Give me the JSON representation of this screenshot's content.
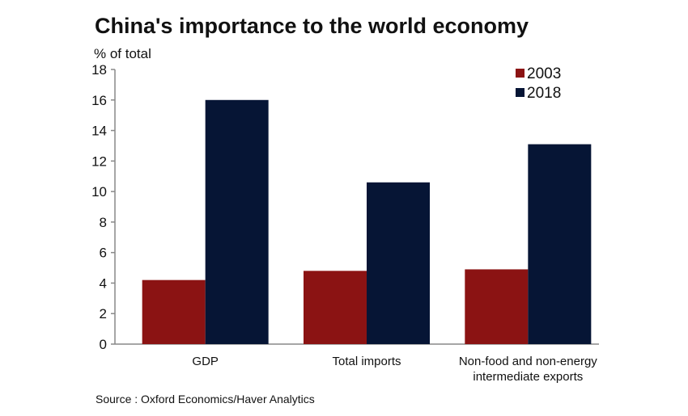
{
  "chart_data": {
    "type": "bar",
    "title": "China's importance to the world economy",
    "ylabel": "% of total",
    "ylim": [
      0,
      18
    ],
    "yticks": [
      0,
      2,
      4,
      6,
      8,
      10,
      12,
      14,
      16,
      18
    ],
    "categories": [
      [
        "GDP"
      ],
      [
        "Total imports"
      ],
      [
        "Non-food and non-energy",
        "intermediate exports"
      ]
    ],
    "series": [
      {
        "name": "2003",
        "color": "#8b1313",
        "values": [
          4.2,
          4.8,
          4.9
        ]
      },
      {
        "name": "2018",
        "color": "#061535",
        "values": [
          16.0,
          10.6,
          13.1
        ]
      }
    ],
    "legend_position": "top-right",
    "grid": false,
    "source": "Source : Oxford Economics/Haver Analytics"
  }
}
